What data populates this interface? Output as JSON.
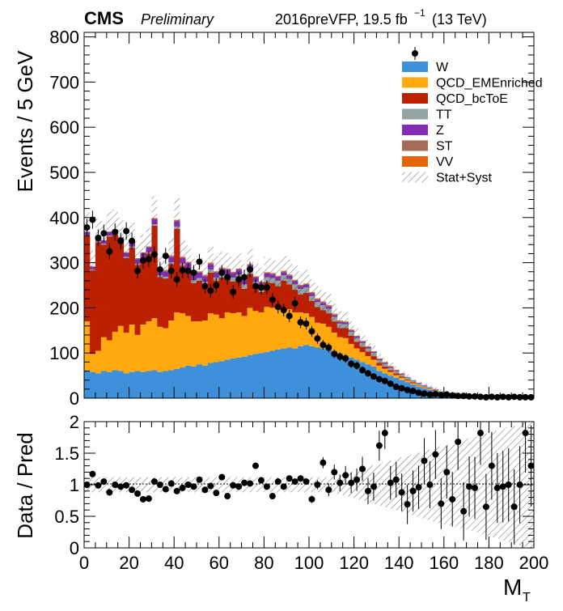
{
  "header": {
    "experiment": "CMS",
    "status": "Preliminary",
    "run_info": "2016preVFP, 19.5 fb",
    "lumi_exp": "−1",
    "energy": "(13 TeV)"
  },
  "colors": {
    "W": "#3f90da",
    "QCD_EMEnriched": "#ffa90e",
    "QCD_bcToE": "#bd1f01",
    "TT": "#94a4a2",
    "Z": "#832db6",
    "ST": "#a96b59",
    "VV": "#e76300"
  },
  "chart_data": [
    {
      "type": "bar",
      "stacked": true,
      "ylabel": "Events / 5 GeV",
      "xlim": [
        0,
        200
      ],
      "ylim": [
        0,
        810
      ],
      "x_ticks": [
        "0",
        "20",
        "40",
        "60",
        "80",
        "100",
        "120",
        "140",
        "160",
        "180",
        "200"
      ],
      "y_ticks": [
        "0",
        "100",
        "200",
        "300",
        "400",
        "500",
        "600",
        "700",
        "800"
      ],
      "legend_position": "top-right",
      "legend": {
        "data": "",
        "W": "W",
        "QCD_EMEnriched": "QCD_EMEnriched",
        "QCD_bcToE": "QCD_bcToE",
        "TT": "TT",
        "Z": "Z",
        "ST": "ST",
        "VV": "VV",
        "unc": "Stat+Syst"
      },
      "bin_width": 2.5,
      "bin_start": 0,
      "series_order": [
        "W",
        "QCD_EMEnriched",
        "QCD_bcToE",
        "TT",
        "Z",
        "ST",
        "VV"
      ],
      "series": [
        {
          "name": "W",
          "values": [
            60,
            58,
            55,
            60,
            58,
            62,
            60,
            55,
            58,
            60,
            58,
            60,
            62,
            58,
            60,
            62,
            65,
            68,
            72,
            70,
            75,
            72,
            78,
            80,
            82,
            85,
            88,
            90,
            92,
            95,
            98,
            100,
            102,
            105,
            108,
            110,
            112,
            110,
            115,
            118,
            115,
            112,
            110,
            108,
            105,
            100,
            95,
            90,
            85,
            80,
            75,
            70,
            60,
            55,
            50,
            45,
            40,
            35,
            30,
            25,
            22,
            18,
            15,
            12,
            10,
            8,
            6,
            5,
            4,
            3,
            3,
            2,
            2,
            1,
            1,
            1,
            1,
            1,
            1,
            1
          ]
        },
        {
          "name": "QCD_EMEnriched",
          "values": [
            110,
            40,
            50,
            75,
            70,
            85,
            100,
            90,
            105,
            80,
            105,
            110,
            115,
            100,
            95,
            110,
            125,
            120,
            110,
            100,
            95,
            100,
            110,
            105,
            95,
            105,
            100,
            100,
            90,
            105,
            95,
            90,
            100,
            95,
            90,
            90,
            85,
            80,
            75,
            70,
            65,
            55,
            55,
            50,
            40,
            35,
            38,
            30,
            25,
            22,
            18,
            15,
            12,
            10,
            8,
            6,
            5,
            4,
            3,
            3,
            2,
            2,
            1,
            1,
            1,
            1,
            1,
            0,
            0,
            0,
            0,
            0,
            0,
            0,
            0,
            0,
            0,
            0,
            0,
            0
          ]
        },
        {
          "name": "QCD_bcToE",
          "values": [
            190,
            185,
            240,
            205,
            230,
            215,
            185,
            165,
            170,
            155,
            145,
            150,
            205,
            110,
            110,
            125,
            185,
            105,
            100,
            85,
            90,
            80,
            90,
            75,
            90,
            75,
            70,
            75,
            60,
            75,
            55,
            45,
            55,
            55,
            50,
            60,
            55,
            50,
            40,
            45,
            35,
            35,
            30,
            30,
            25,
            20,
            22,
            18,
            15,
            12,
            10,
            8,
            6,
            5,
            4,
            4,
            3,
            2,
            2,
            1,
            1,
            1,
            1,
            0,
            0,
            0,
            0,
            0,
            0,
            0,
            0,
            0,
            0,
            0,
            0,
            0,
            0,
            0,
            0,
            0
          ]
        },
        {
          "name": "TT",
          "values": [
            2,
            2,
            2,
            2,
            2,
            2,
            2,
            3,
            3,
            3,
            3,
            3,
            3,
            4,
            4,
            4,
            5,
            5,
            5,
            6,
            6,
            6,
            7,
            7,
            8,
            8,
            9,
            9,
            10,
            10,
            10,
            11,
            11,
            11,
            12,
            12,
            12,
            12,
            12,
            12,
            11,
            11,
            11,
            10,
            10,
            10,
            9,
            9,
            8,
            8,
            7,
            7,
            6,
            6,
            5,
            5,
            4,
            4,
            3,
            3,
            3,
            2,
            2,
            2,
            1,
            1,
            1,
            1,
            1,
            1,
            1,
            0,
            0,
            0,
            0,
            0,
            0,
            0,
            0,
            0
          ]
        },
        {
          "name": "Z",
          "values": [
            6,
            6,
            7,
            7,
            8,
            8,
            9,
            9,
            10,
            10,
            10,
            11,
            11,
            11,
            12,
            12,
            12,
            12,
            12,
            12,
            12,
            12,
            12,
            11,
            11,
            11,
            10,
            10,
            10,
            9,
            9,
            9,
            8,
            8,
            8,
            7,
            7,
            7,
            6,
            6,
            6,
            5,
            5,
            5,
            4,
            4,
            4,
            3,
            3,
            3,
            3,
            2,
            2,
            2,
            2,
            1,
            1,
            1,
            1,
            1,
            1,
            1,
            1,
            0,
            0,
            0,
            0,
            0,
            0,
            0,
            0,
            0,
            0,
            0,
            0,
            0,
            0,
            0,
            0,
            0
          ]
        },
        {
          "name": "ST",
          "values": [
            1,
            1,
            1,
            1,
            1,
            1,
            1,
            1,
            2,
            2,
            2,
            2,
            2,
            2,
            2,
            2,
            2,
            2,
            2,
            2,
            2,
            2,
            2,
            2,
            2,
            2,
            2,
            2,
            2,
            2,
            2,
            2,
            2,
            2,
            2,
            2,
            2,
            2,
            2,
            2,
            2,
            2,
            2,
            2,
            2,
            2,
            1,
            1,
            1,
            1,
            1,
            1,
            1,
            1,
            1,
            1,
            1,
            1,
            1,
            1,
            0,
            0,
            0,
            0,
            0,
            0,
            0,
            0,
            0,
            0,
            0,
            0,
            0,
            0,
            0,
            0,
            0,
            0,
            0,
            0
          ]
        },
        {
          "name": "VV",
          "values": [
            0,
            0,
            0,
            0,
            0,
            0,
            0,
            0,
            0,
            0,
            0,
            0,
            1,
            1,
            1,
            1,
            1,
            1,
            1,
            1,
            1,
            1,
            1,
            1,
            1,
            1,
            1,
            1,
            1,
            1,
            1,
            1,
            1,
            1,
            1,
            1,
            1,
            1,
            1,
            1,
            1,
            1,
            1,
            1,
            1,
            1,
            1,
            1,
            1,
            1,
            1,
            1,
            1,
            1,
            1,
            1,
            1,
            0,
            0,
            0,
            0,
            0,
            0,
            0,
            0,
            0,
            0,
            0,
            0,
            0,
            0,
            0,
            0,
            0,
            0,
            0,
            0,
            0,
            0,
            0
          ]
        }
      ],
      "data_points": [
        [
          1.25,
          378
        ],
        [
          3.75,
          395
        ],
        [
          6.25,
          355
        ],
        [
          8.75,
          365
        ],
        [
          11.25,
          325
        ],
        [
          13.75,
          368
        ],
        [
          16.25,
          348
        ],
        [
          18.75,
          370
        ],
        [
          21.25,
          348
        ],
        [
          23.75,
          282
        ],
        [
          26.25,
          305
        ],
        [
          28.75,
          308
        ],
        [
          31.25,
          318
        ],
        [
          33.75,
          285
        ],
        [
          36.25,
          315
        ],
        [
          38.75,
          282
        ],
        [
          41.25,
          263
        ],
        [
          43.75,
          283
        ],
        [
          46.25,
          282
        ],
        [
          48.75,
          278
        ],
        [
          51.25,
          302
        ],
        [
          53.75,
          248
        ],
        [
          56.25,
          238
        ],
        [
          58.75,
          250
        ],
        [
          61.25,
          278
        ],
        [
          63.75,
          268
        ],
        [
          66.25,
          235
        ],
        [
          68.75,
          263
        ],
        [
          71.25,
          268
        ],
        [
          73.75,
          285
        ],
        [
          76.25,
          248
        ],
        [
          78.75,
          245
        ],
        [
          81.25,
          245
        ],
        [
          83.75,
          218
        ],
        [
          86.25,
          202
        ],
        [
          88.75,
          195
        ],
        [
          91.25,
          182
        ],
        [
          93.75,
          210
        ],
        [
          96.25,
          168
        ],
        [
          98.75,
          165
        ],
        [
          101.25,
          148
        ],
        [
          103.75,
          132
        ],
        [
          106.25,
          118
        ],
        [
          108.75,
          112
        ],
        [
          111.25,
          98
        ],
        [
          113.75,
          92
        ],
        [
          116.25,
          88
        ],
        [
          118.75,
          76
        ],
        [
          121.25,
          72
        ],
        [
          123.75,
          62
        ],
        [
          126.25,
          55
        ],
        [
          128.75,
          48
        ],
        [
          131.25,
          42
        ],
        [
          133.75,
          38
        ],
        [
          136.25,
          32
        ],
        [
          138.75,
          25
        ],
        [
          141.25,
          22
        ],
        [
          143.75,
          18
        ],
        [
          146.25,
          16
        ],
        [
          148.75,
          12
        ],
        [
          151.25,
          10
        ],
        [
          153.75,
          8
        ],
        [
          156.25,
          9
        ],
        [
          158.75,
          7
        ],
        [
          161.25,
          8
        ],
        [
          163.75,
          6
        ],
        [
          166.25,
          5
        ],
        [
          168.75,
          5
        ],
        [
          171.25,
          4
        ],
        [
          173.75,
          4
        ],
        [
          176.25,
          3
        ],
        [
          178.75,
          2
        ],
        [
          181.25,
          3
        ],
        [
          183.75,
          2
        ],
        [
          186.25,
          3
        ],
        [
          188.75,
          2
        ],
        [
          191.25,
          3
        ],
        [
          193.75,
          2
        ],
        [
          196.25,
          2
        ],
        [
          198.75,
          2
        ]
      ]
    },
    {
      "type": "scatter",
      "ylabel": "Data / Pred",
      "xlabel": "M",
      "xlabel_sub": "T",
      "xlim": [
        0,
        200
      ],
      "ylim": [
        0,
        2
      ],
      "x_ticks": [
        "0",
        "20",
        "40",
        "60",
        "80",
        "100",
        "120",
        "140",
        "160",
        "180",
        "200"
      ],
      "y_ticks": [
        "0",
        "0.5",
        "1",
        "1.5",
        "2"
      ],
      "reference_line": 1,
      "points": [
        [
          1.25,
          1.0
        ],
        [
          3.75,
          1.17
        ],
        [
          6.25,
          0.99
        ],
        [
          8.75,
          1.05
        ],
        [
          11.25,
          0.88
        ],
        [
          13.75,
          1.0
        ],
        [
          16.25,
          0.97
        ],
        [
          18.75,
          0.99
        ],
        [
          21.25,
          0.92
        ],
        [
          23.75,
          0.86
        ],
        [
          26.25,
          0.77
        ],
        [
          28.75,
          0.78
        ],
        [
          31.25,
          1.05
        ],
        [
          33.75,
          1.0
        ],
        [
          36.25,
          0.93
        ],
        [
          38.75,
          1.02
        ],
        [
          41.25,
          0.9
        ],
        [
          43.75,
          0.95
        ],
        [
          46.25,
          1.0
        ],
        [
          48.75,
          0.97
        ],
        [
          51.25,
          1.08
        ],
        [
          53.75,
          0.92
        ],
        [
          56.25,
          0.98
        ],
        [
          58.75,
          0.87
        ],
        [
          61.25,
          1.12
        ],
        [
          63.75,
          0.82
        ],
        [
          66.25,
          0.99
        ],
        [
          68.75,
          0.97
        ],
        [
          71.25,
          1.03
        ],
        [
          73.75,
          1.02
        ],
        [
          76.25,
          1.3
        ],
        [
          78.75,
          1.07
        ],
        [
          81.25,
          0.97
        ],
        [
          83.75,
          0.82
        ],
        [
          86.25,
          1.05
        ],
        [
          88.75,
          0.97
        ],
        [
          91.25,
          1.1
        ],
        [
          93.75,
          1.05
        ],
        [
          96.25,
          1.1
        ],
        [
          98.75,
          1.05
        ],
        [
          101.25,
          0.77
        ],
        [
          103.75,
          1.0
        ],
        [
          106.25,
          1.35
        ],
        [
          108.75,
          0.92
        ],
        [
          111.25,
          1.2
        ],
        [
          113.75,
          1.03
        ],
        [
          116.25,
          1.15
        ],
        [
          118.75,
          1.03
        ],
        [
          121.25,
          1.08
        ],
        [
          123.75,
          1.25
        ],
        [
          126.25,
          0.9
        ],
        [
          128.75,
          0.97
        ],
        [
          131.25,
          1.62
        ],
        [
          133.75,
          1.82
        ],
        [
          136.25,
          1.03
        ],
        [
          138.75,
          1.08
        ],
        [
          141.25,
          0.88
        ],
        [
          143.75,
          0.69
        ],
        [
          146.25,
          0.9
        ],
        [
          148.75,
          0.96
        ],
        [
          151.25,
          1.38
        ],
        [
          153.75,
          1.0
        ],
        [
          156.25,
          1.48
        ],
        [
          158.75,
          0.7
        ],
        [
          161.25,
          1.2
        ],
        [
          163.75,
          0.77
        ],
        [
          166.25,
          1.68
        ],
        [
          168.75,
          0.58
        ],
        [
          171.25,
          0.97
        ],
        [
          173.75,
          0.95
        ],
        [
          176.25,
          1.82
        ],
        [
          178.75,
          0.65
        ],
        [
          181.25,
          1.3
        ],
        [
          183.75,
          0.95
        ],
        [
          186.25,
          0.97
        ],
        [
          188.75,
          1.0
        ],
        [
          191.25,
          0.65
        ],
        [
          193.75,
          1.0
        ],
        [
          196.25,
          1.82
        ],
        [
          198.75,
          1.3
        ]
      ]
    }
  ]
}
